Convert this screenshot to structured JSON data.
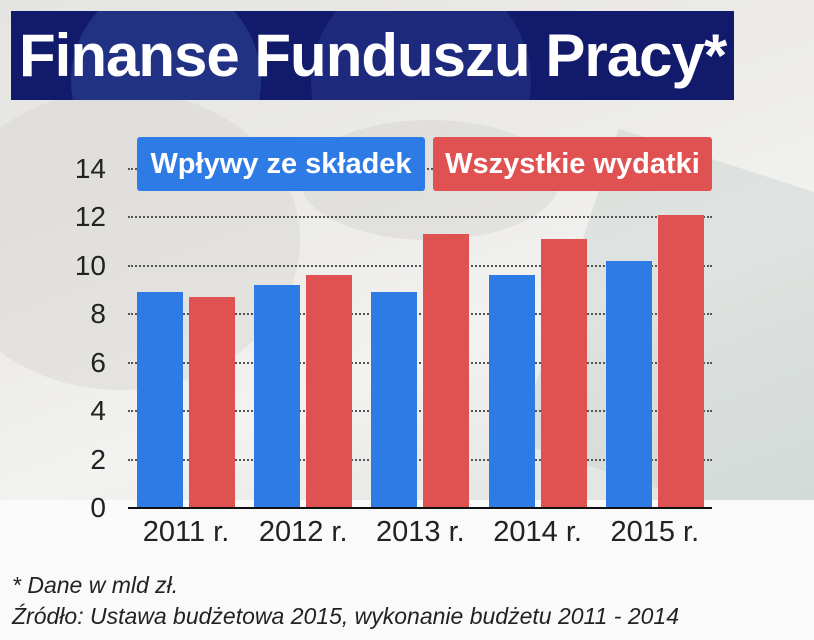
{
  "title": "Finanse Funduszu Pracy*",
  "legend": [
    {
      "label": "Wpływy ze składek",
      "color": "#2f7be6"
    },
    {
      "label": "Wszystkie wydatki",
      "color": "#e05252"
    }
  ],
  "footnotes": {
    "unit": "* Dane w mld zł.",
    "source": "Źródło: Ustawa budżetowa 2015, wykonanie budżetu 2011 - 2014"
  },
  "chart_data": {
    "type": "bar",
    "title": "Finanse Funduszu Pracy*",
    "xlabel": "",
    "ylabel": "mld zł",
    "categories": [
      "2011 r.",
      "2012 r.",
      "2013 r.",
      "2014 r.",
      "2015 r."
    ],
    "series": [
      {
        "name": "Wpływy ze składek",
        "color": "#2f7be6",
        "values": [
          8.9,
          9.2,
          8.9,
          9.6,
          10.2
        ]
      },
      {
        "name": "Wszystkie wydatki",
        "color": "#e05252",
        "values": [
          8.7,
          9.6,
          11.3,
          11.1,
          12.1
        ]
      }
    ],
    "yticks": [
      0,
      2,
      4,
      6,
      8,
      10,
      12,
      14
    ],
    "ylim": [
      0,
      14
    ],
    "grid": true,
    "grid_style": "dotted",
    "legend_position": "top"
  }
}
